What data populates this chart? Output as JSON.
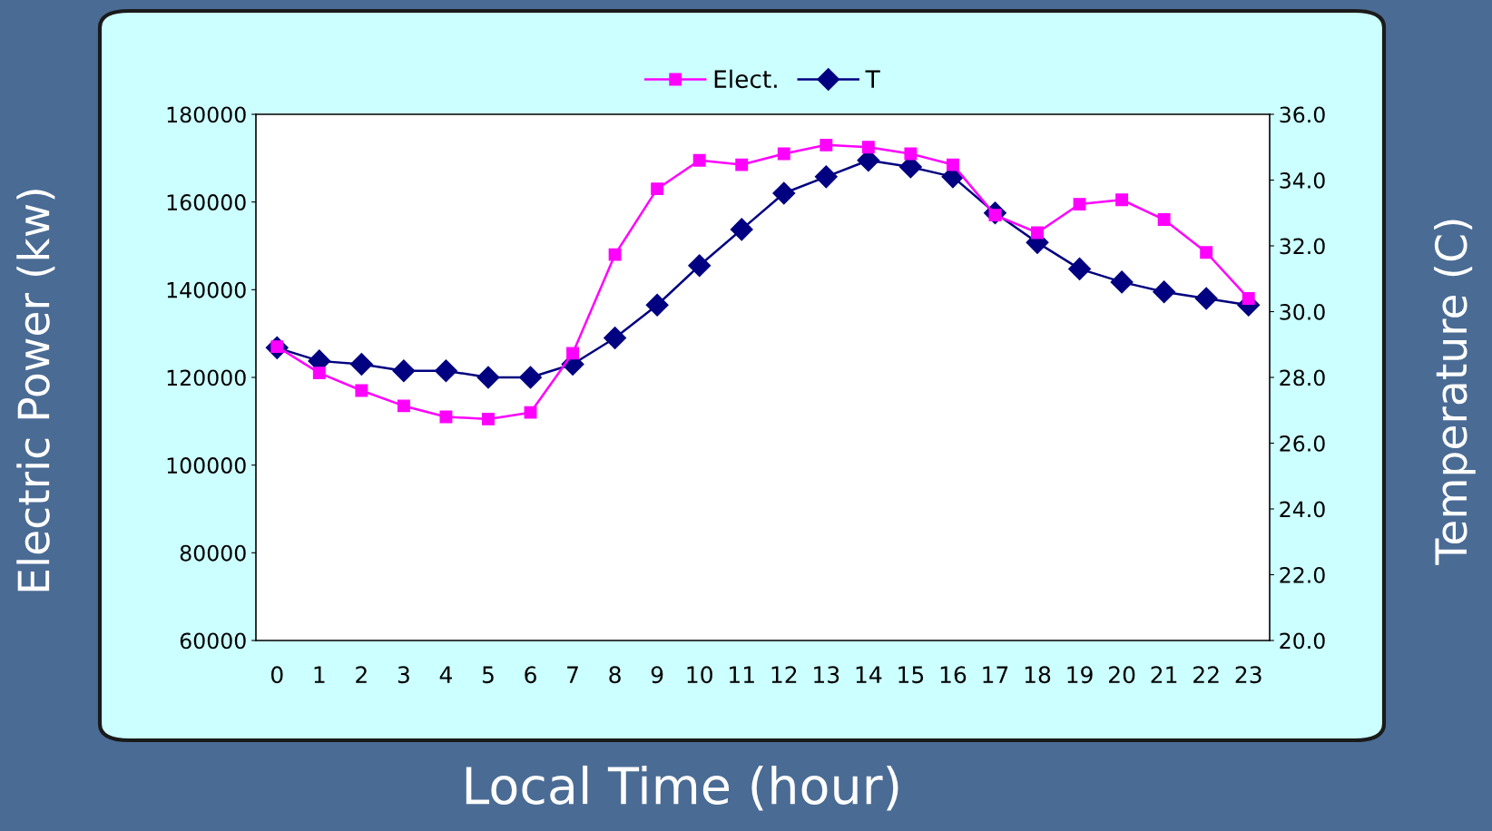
{
  "chart_data": {
    "type": "line",
    "xlabel": "Local Time (hour)",
    "ylabel": "Electric Power (kw)",
    "y2label": "Temperature (C)",
    "categories": [
      "0",
      "1",
      "2",
      "3",
      "4",
      "5",
      "6",
      "7",
      "8",
      "9",
      "10",
      "11",
      "12",
      "13",
      "14",
      "15",
      "16",
      "17",
      "18",
      "19",
      "20",
      "21",
      "22",
      "23"
    ],
    "series": [
      {
        "name": "Elect.",
        "color": "#ff00ff",
        "marker": "square",
        "values": [
          127000,
          121000,
          117000,
          113500,
          111000,
          110500,
          112000,
          125500,
          148000,
          163000,
          169500,
          168500,
          171000,
          173000,
          172500,
          171000,
          168500,
          157000,
          153000,
          159500,
          160500,
          156000,
          148500,
          138000
        ]
      },
      {
        "name": "T",
        "color": "#000080",
        "marker": "diamond",
        "axis": "y2",
        "values": [
          28.9,
          28.5,
          28.4,
          28.2,
          28.2,
          28.0,
          28.0,
          28.4,
          29.2,
          30.2,
          31.4,
          32.5,
          33.6,
          34.1,
          34.6,
          34.4,
          34.1,
          33.0,
          32.1,
          31.3,
          30.9,
          30.6,
          30.4,
          30.2
        ]
      }
    ],
    "ylim": [
      60000,
      180000
    ],
    "yticks": [
      60000,
      80000,
      100000,
      120000,
      140000,
      160000,
      180000
    ],
    "y2lim": [
      20,
      36
    ],
    "y2ticks": [
      {
        "value": 20,
        "label": "20.0"
      },
      {
        "value": 22,
        "label": "22.0"
      },
      {
        "value": 24,
        "label": "24.0"
      },
      {
        "value": 26,
        "label": "26.0"
      },
      {
        "value": 28,
        "label": "28.0"
      },
      {
        "value": 30,
        "label": "30.0"
      },
      {
        "value": 32,
        "label": "32.0"
      },
      {
        "value": 34,
        "label": "34.0"
      },
      {
        "value": 36,
        "label": "36.0"
      }
    ],
    "grid": false,
    "legend": "top",
    "line_style": "solid"
  }
}
